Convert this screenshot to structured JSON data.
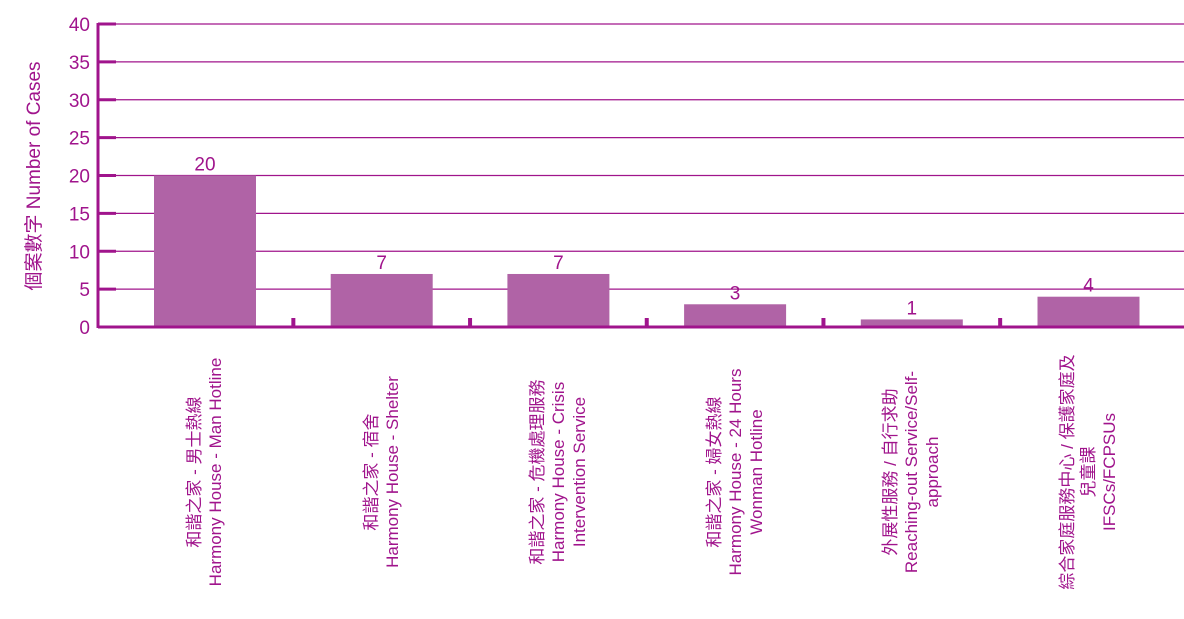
{
  "chart_data": {
    "type": "bar",
    "ylabel": "個案數字 Number of Cases",
    "xlabel": "",
    "title": "",
    "ylim": [
      0,
      40
    ],
    "yticks": [
      0,
      5,
      10,
      15,
      20,
      25,
      30,
      35,
      40
    ],
    "grid": true,
    "legend": "none",
    "categories": [
      "和諧之家 - 男士熱線\nHarmony House - Man Hotline",
      "和諧之家 - 宿舍\nHarmony House - Shelter",
      "和諧之家 - 危機處理服務\nHarmony House - Crisis\nIntervention Service",
      "和諧之家 - 婦女熱線\nHarmony House - 24 Hours\nWonman Hotline",
      "外展性服務 / 自行求助\nReaching-out Service/Self-\napproach",
      "綜合家庭服務中心 / 保護家庭及\n兒童課\nIFSCs/FCPSUs"
    ],
    "values": [
      20,
      7,
      7,
      3,
      1,
      4
    ],
    "data_labels": [
      "20",
      "7",
      "7",
      "3",
      "1",
      "4"
    ],
    "colors": {
      "bar": "#b063a6",
      "axis": "#a0148c",
      "grid": "#a0148c",
      "text": "#a0148c"
    }
  }
}
